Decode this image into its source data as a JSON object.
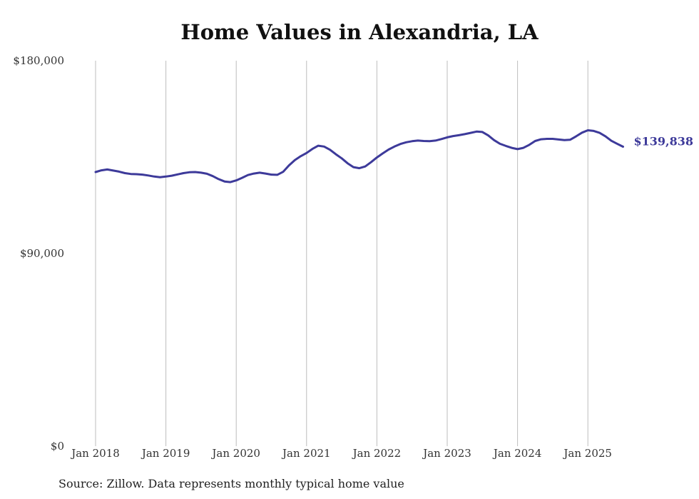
{
  "chart_data": {
    "type": "line",
    "title": "Home Values in Alexandria, LA",
    "xlabel": "",
    "ylabel": "",
    "ylim": [
      0,
      180000
    ],
    "y_ticks": [
      "$180,000",
      "$90,000",
      "$0"
    ],
    "y_tick_values": [
      180000,
      90000,
      0
    ],
    "x_ticks": [
      "Jan 2018",
      "Jan 2019",
      "Jan 2020",
      "Jan 2021",
      "Jan 2022",
      "Jan 2023",
      "Jan 2024",
      "Jan 2025"
    ],
    "grid": "vertical",
    "line_color": "#3d3a9a",
    "end_label": "$139,838",
    "series": [
      {
        "x": [
          "2018-01",
          "2018-02",
          "2018-03",
          "2018-04",
          "2018-05",
          "2018-06",
          "2018-07",
          "2018-08",
          "2018-09",
          "2018-10",
          "2018-11",
          "2018-12",
          "2019-01",
          "2019-02",
          "2019-03",
          "2019-04",
          "2019-05",
          "2019-06",
          "2019-07",
          "2019-08",
          "2019-09",
          "2019-10",
          "2019-11",
          "2019-12",
          "2020-01",
          "2020-02",
          "2020-03",
          "2020-04",
          "2020-05",
          "2020-06",
          "2020-07",
          "2020-08",
          "2020-09",
          "2020-10",
          "2020-11",
          "2020-12",
          "2021-01",
          "2021-02",
          "2021-03",
          "2021-04",
          "2021-05",
          "2021-06",
          "2021-07",
          "2021-08",
          "2021-09",
          "2021-10",
          "2021-11",
          "2021-12",
          "2022-01",
          "2022-02",
          "2022-03",
          "2022-04",
          "2022-05",
          "2022-06",
          "2022-07",
          "2022-08",
          "2022-09",
          "2022-10",
          "2022-11",
          "2022-12",
          "2023-01",
          "2023-02",
          "2023-03",
          "2023-04",
          "2023-05",
          "2023-06",
          "2023-07",
          "2023-08",
          "2023-09",
          "2023-10",
          "2023-11",
          "2023-12",
          "2024-01",
          "2024-02",
          "2024-03",
          "2024-04",
          "2024-05",
          "2024-06",
          "2024-07",
          "2024-08",
          "2024-09",
          "2024-10",
          "2024-11",
          "2024-12",
          "2025-01",
          "2025-02",
          "2025-03",
          "2025-04",
          "2025-05",
          "2025-06",
          "2025-07"
        ],
        "values": [
          128000,
          128800,
          129200,
          128700,
          128200,
          127500,
          127100,
          127000,
          126800,
          126400,
          125900,
          125600,
          125900,
          126300,
          126900,
          127500,
          127900,
          128000,
          127700,
          127200,
          126100,
          124700,
          123600,
          123300,
          124100,
          125300,
          126600,
          127300,
          127700,
          127300,
          126800,
          126700,
          128100,
          131100,
          133600,
          135400,
          136900,
          138800,
          140300,
          139900,
          138400,
          136300,
          134400,
          132100,
          130300,
          129800,
          130600,
          132600,
          134800,
          136700,
          138500,
          139900,
          141100,
          141900,
          142400,
          142700,
          142500,
          142400,
          142700,
          143400,
          144200,
          144800,
          145200,
          145700,
          146300,
          146900,
          146700,
          145100,
          142900,
          141200,
          140200,
          139300,
          138700,
          139300,
          140700,
          142500,
          143300,
          143500,
          143500,
          143200,
          142900,
          143100,
          144700,
          146400,
          147500,
          147200,
          146300,
          144700,
          142600,
          141200,
          139838
        ]
      }
    ]
  },
  "source_note": "Source: Zillow. Data represents monthly typical home value"
}
